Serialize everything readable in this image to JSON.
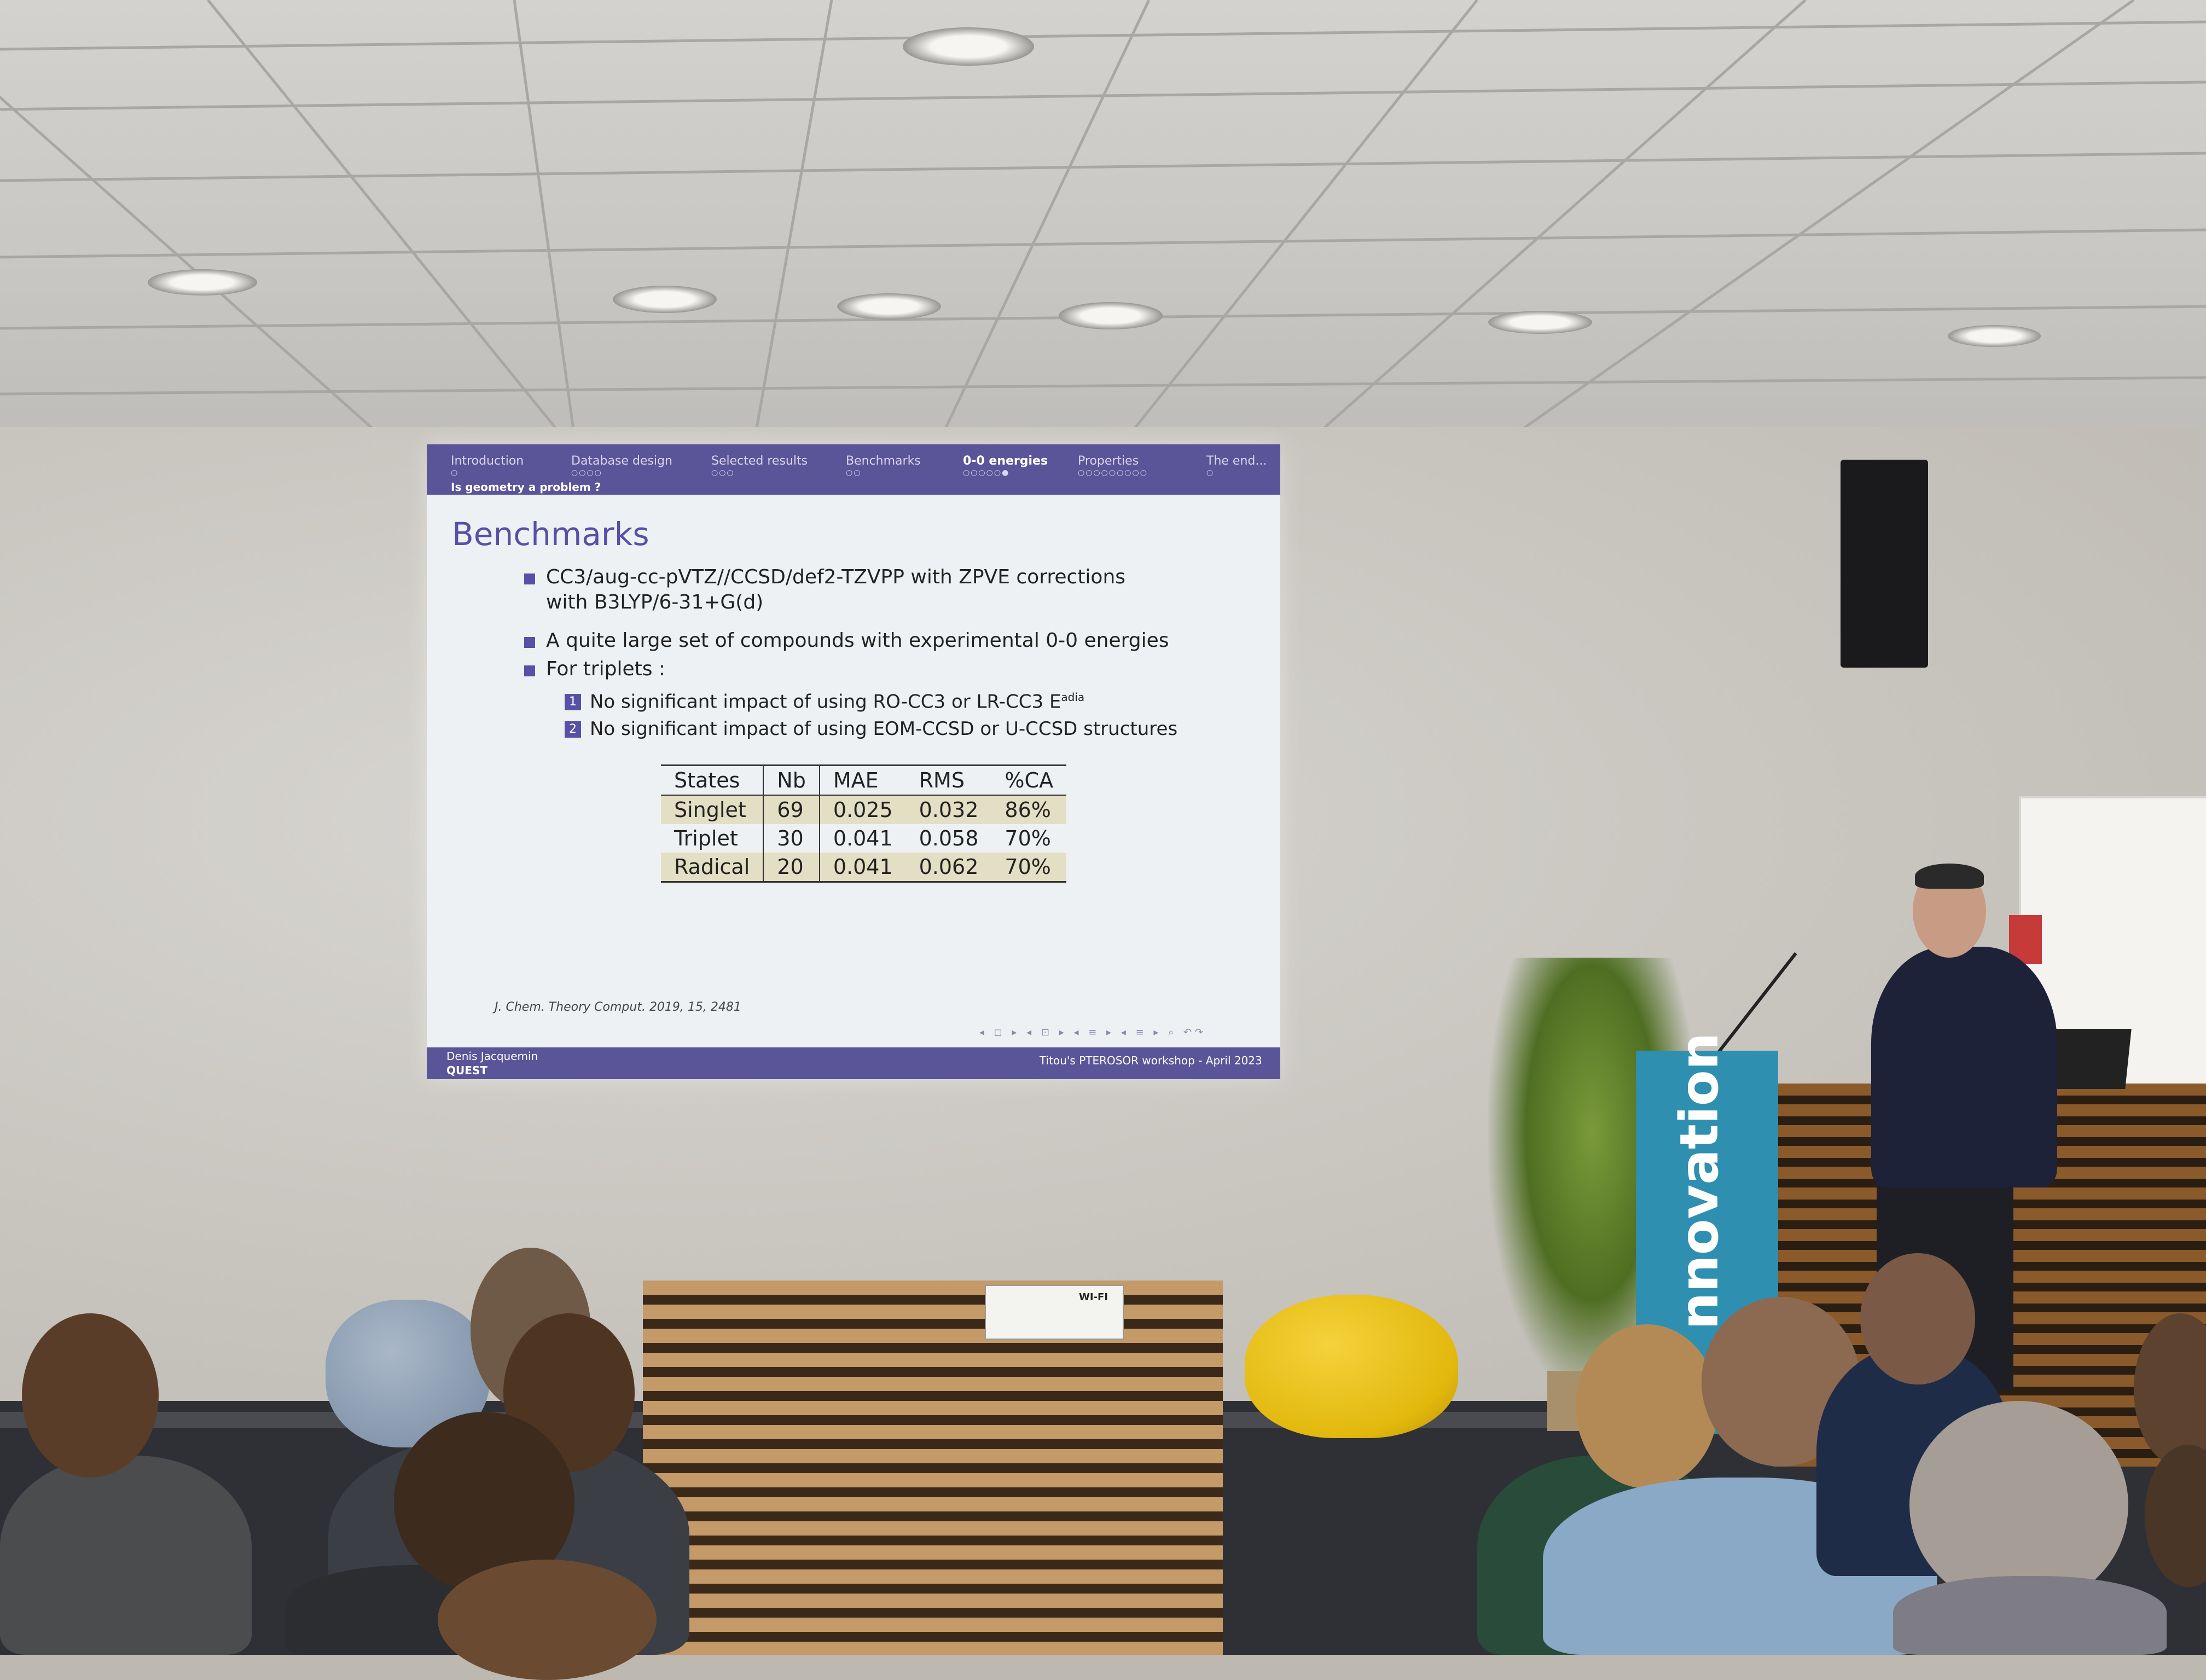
{
  "slide": {
    "nav": [
      {
        "label": "Introduction",
        "dots": "○"
      },
      {
        "label": "Database design",
        "dots": "○○○○"
      },
      {
        "label": "Selected results",
        "dots": "○○○"
      },
      {
        "label": "Benchmarks",
        "dots": "○○"
      },
      {
        "label": "0-0 energies",
        "dots": "○○○○○●"
      },
      {
        "label": "Properties",
        "dots": "○○○○○○○○○"
      },
      {
        "label": "The end...",
        "dots": "○"
      }
    ],
    "subsection": "Is geometry a problem ?",
    "title": "Benchmarks",
    "bullets": [
      "CC3/aug-cc-pVTZ//CCSD/def2-TZVPP with ZPVE corrections",
      "with B3LYP/6-31+G(d)",
      "A quite large set of compounds with experimental 0-0 energies",
      "For triplets :"
    ],
    "subitems": [
      {
        "num": "1",
        "text": "No significant impact of using RO-CC3 or LR-CC3 E",
        "sup": "adia"
      },
      {
        "num": "2",
        "text": "No significant impact of using EOM-CCSD or U-CCSD structures"
      }
    ],
    "table": {
      "headers": [
        "States",
        "Nb",
        "MAE",
        "RMS",
        "%CA"
      ],
      "rows": [
        [
          "Singlet",
          "69",
          "0.025",
          "0.032",
          "86%"
        ],
        [
          "Triplet",
          "30",
          "0.041",
          "0.058",
          "70%"
        ],
        [
          "Radical",
          "20",
          "0.041",
          "0.062",
          "70%"
        ]
      ]
    },
    "reference": "J. Chem. Theory Comput. 2019, 15, 2481",
    "nav_icons": "◂ ◻ ▸ ◂ ⊡ ▸ ◂ ≡ ▸ ◂ ≡ ▸ ⌕ ↶↷",
    "footer": {
      "author": "Denis Jacquemin",
      "short_title": "QUEST",
      "event": "Titou's PTEROSOR workshop - April 2023"
    }
  },
  "room": {
    "podium_text": "nnovation",
    "wifi_sign_label": "WI-FI"
  },
  "colors": {
    "beamer_bar": "#5a5498",
    "beamer_title": "#5650a6",
    "table_shade": "#e3dfc4",
    "podium": "#2e8fb0",
    "pouf": "#e2b80d"
  }
}
